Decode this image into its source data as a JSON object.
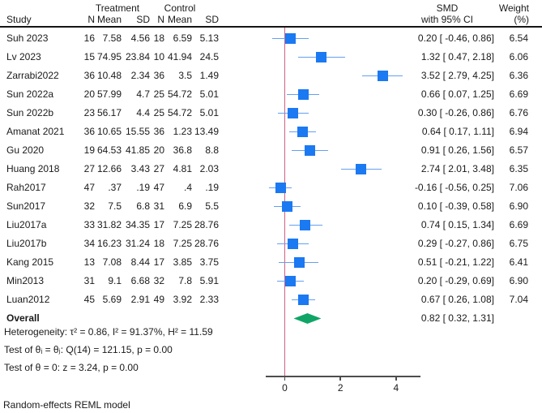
{
  "header": {
    "study": "Study",
    "treatment": "Treatment",
    "control": "Control",
    "n": "N",
    "mean": "Mean",
    "sd": "SD",
    "smd_line1": "SMD",
    "smd_line2": "with 95% CI",
    "weight_line1": "Weight",
    "weight_line2": "(%)"
  },
  "chart_data": {
    "type": "scatter",
    "subtype": "forest-plot-meta-analysis",
    "effect_measure": "SMD",
    "x_axis": {
      "ticks": [
        0,
        2,
        4
      ],
      "ref_line": 0,
      "range": [
        -0.7,
        4.9
      ]
    },
    "studies": [
      {
        "study": "Suh 2023",
        "t_n": "16",
        "t_mean": "7.58",
        "t_sd": "4.56",
        "c_n": "18",
        "c_mean": "6.59",
        "c_sd": "5.13",
        "smd": 0.2,
        "lo": -0.46,
        "hi": 0.86,
        "ci_label": "0.20 [ -0.46, 0.86]",
        "weight": "6.54"
      },
      {
        "study": "Lv 2023",
        "t_n": "15",
        "t_mean": "74.95",
        "t_sd": "23.84",
        "c_n": "10",
        "c_mean": "41.94",
        "c_sd": "24.5",
        "smd": 1.32,
        "lo": 0.47,
        "hi": 2.18,
        "ci_label": "1.32 [ 0.47, 2.18]",
        "weight": "6.06"
      },
      {
        "study": "Zarrabi2022",
        "t_n": "36",
        "t_mean": "10.48",
        "t_sd": "2.34",
        "c_n": "36",
        "c_mean": "3.5",
        "c_sd": "1.49",
        "smd": 3.52,
        "lo": 2.79,
        "hi": 4.25,
        "ci_label": "3.52 [ 2.79, 4.25]",
        "weight": "6.36"
      },
      {
        "study": "Sun 2022a",
        "t_n": "20",
        "t_mean": "57.99",
        "t_sd": "4.7",
        "c_n": "25",
        "c_mean": "54.72",
        "c_sd": "5.01",
        "smd": 0.66,
        "lo": 0.07,
        "hi": 1.25,
        "ci_label": "0.66 [ 0.07, 1.25]",
        "weight": "6.69"
      },
      {
        "study": "Sun 2022b",
        "t_n": "23",
        "t_mean": "56.17",
        "t_sd": "4.4",
        "c_n": "25",
        "c_mean": "54.72",
        "c_sd": "5.01",
        "smd": 0.3,
        "lo": -0.26,
        "hi": 0.86,
        "ci_label": "0.30 [ -0.26, 0.86]",
        "weight": "6.76"
      },
      {
        "study": "Amanat 2021",
        "t_n": "36",
        "t_mean": "10.65",
        "t_sd": "15.55",
        "c_n": "36",
        "c_mean": "1.23",
        "c_sd": "13.49",
        "smd": 0.64,
        "lo": 0.17,
        "hi": 1.11,
        "ci_label": "0.64 [ 0.17, 1.11]",
        "weight": "6.94"
      },
      {
        "study": "Gu 2020",
        "t_n": "19",
        "t_mean": "64.53",
        "t_sd": "41.85",
        "c_n": "20",
        "c_mean": "36.8",
        "c_sd": "8.8",
        "smd": 0.91,
        "lo": 0.26,
        "hi": 1.56,
        "ci_label": "0.91 [ 0.26, 1.56]",
        "weight": "6.57"
      },
      {
        "study": "Huang 2018",
        "t_n": "27",
        "t_mean": "12.66",
        "t_sd": "3.43",
        "c_n": "27",
        "c_mean": "4.81",
        "c_sd": "2.03",
        "smd": 2.74,
        "lo": 2.01,
        "hi": 3.48,
        "ci_label": "2.74 [ 2.01, 3.48]",
        "weight": "6.35"
      },
      {
        "study": "Rah2017",
        "t_n": "47",
        "t_mean": ".37",
        "t_sd": ".19",
        "c_n": "47",
        "c_mean": ".4",
        "c_sd": ".19",
        "smd": -0.16,
        "lo": -0.56,
        "hi": 0.25,
        "ci_label": "-0.16 [ -0.56, 0.25]",
        "weight": "7.06"
      },
      {
        "study": "Sun2017",
        "t_n": "32",
        "t_mean": "7.5",
        "t_sd": "6.8",
        "c_n": "31",
        "c_mean": "6.9",
        "c_sd": "5.5",
        "smd": 0.1,
        "lo": -0.39,
        "hi": 0.58,
        "ci_label": "0.10 [ -0.39, 0.58]",
        "weight": "6.90"
      },
      {
        "study": "Liu2017a",
        "t_n": "33",
        "t_mean": "31.82",
        "t_sd": "34.35",
        "c_n": "17",
        "c_mean": "7.25",
        "c_sd": "28.76",
        "smd": 0.74,
        "lo": 0.15,
        "hi": 1.34,
        "ci_label": "0.74 [ 0.15, 1.34]",
        "weight": "6.69"
      },
      {
        "study": "Liu2017b",
        "t_n": "34",
        "t_mean": "16.23",
        "t_sd": "31.24",
        "c_n": "18",
        "c_mean": "7.25",
        "c_sd": "28.76",
        "smd": 0.29,
        "lo": -0.27,
        "hi": 0.86,
        "ci_label": "0.29 [ -0.27, 0.86]",
        "weight": "6.75"
      },
      {
        "study": "Kang 2015",
        "t_n": "13",
        "t_mean": "7.08",
        "t_sd": "8.44",
        "c_n": "17",
        "c_mean": "3.85",
        "c_sd": "3.75",
        "smd": 0.51,
        "lo": -0.21,
        "hi": 1.22,
        "ci_label": "0.51 [ -0.21, 1.22]",
        "weight": "6.41"
      },
      {
        "study": "Min2013",
        "t_n": "31",
        "t_mean": "9.1",
        "t_sd": "6.68",
        "c_n": "32",
        "c_mean": "7.8",
        "c_sd": "5.91",
        "smd": 0.2,
        "lo": -0.29,
        "hi": 0.69,
        "ci_label": "0.20 [ -0.29, 0.69]",
        "weight": "6.90"
      },
      {
        "study": "Luan2012",
        "t_n": "45",
        "t_mean": "5.69",
        "t_sd": "2.91",
        "c_n": "49",
        "c_mean": "3.92",
        "c_sd": "2.33",
        "smd": 0.67,
        "lo": 0.26,
        "hi": 1.08,
        "ci_label": "0.67 [ 0.26, 1.08]",
        "weight": "7.04"
      }
    ],
    "overall": {
      "label": "Overall",
      "smd": 0.82,
      "lo": 0.32,
      "hi": 1.31,
      "ci_label": "0.82 [ 0.32, 1.31]"
    },
    "stats": [
      "Heterogeneity: τ² = 0.86, I² = 91.37%, H² = 11.59",
      "Test of θᵢ = θⱼ: Q(14) = 121.15, p = 0.00",
      "Test of θ = 0: z = 3.24, p = 0.00"
    ],
    "footnote": "Random-effects REML model"
  },
  "colors": {
    "square": "#1b79f2",
    "ci_line": "#64a0f2",
    "ref_line": "#d06080",
    "diamond": "#10a566",
    "axis": "#4d4d4d"
  }
}
